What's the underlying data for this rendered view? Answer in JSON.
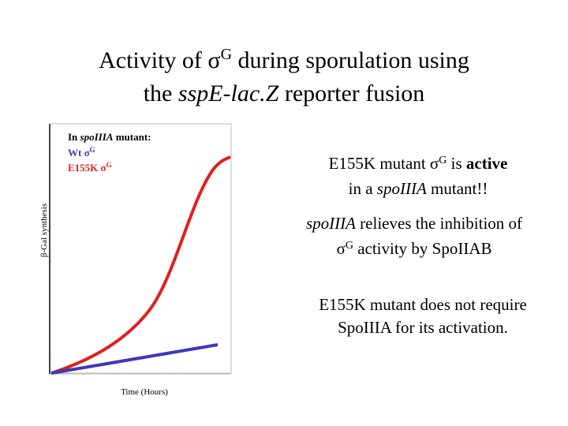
{
  "title": {
    "line1": [
      "Activity of σ",
      "G",
      " during sporulation using"
    ],
    "line2": [
      "the ",
      "sspE-lac.Z",
      " reporter fusion"
    ]
  },
  "graph": {
    "legend": {
      "heading": [
        "In ",
        "spoIIIA",
        " mutant:"
      ],
      "wt": [
        "Wt σ",
        "G"
      ],
      "e155k": [
        "E155K σ",
        "G"
      ]
    },
    "y_label": "β-Gal synthesis",
    "x_label": "Time (Hours)"
  },
  "notes": [
    {
      "lines": [
        [
          "E155K mutant σ",
          "G",
          " is ",
          "active"
        ],
        [
          "in a ",
          "spoIIIA",
          " mutant!!"
        ]
      ]
    },
    {
      "lines": [
        [
          "spoIIIA",
          " relieves the inhibition of"
        ],
        [
          "σ",
          "G",
          " activity by SpoIIAB"
        ]
      ]
    },
    {
      "lines": [
        [
          "E155K mutant does not require"
        ],
        [
          "SpoIIIA for its activation."
        ]
      ]
    }
  ]
}
